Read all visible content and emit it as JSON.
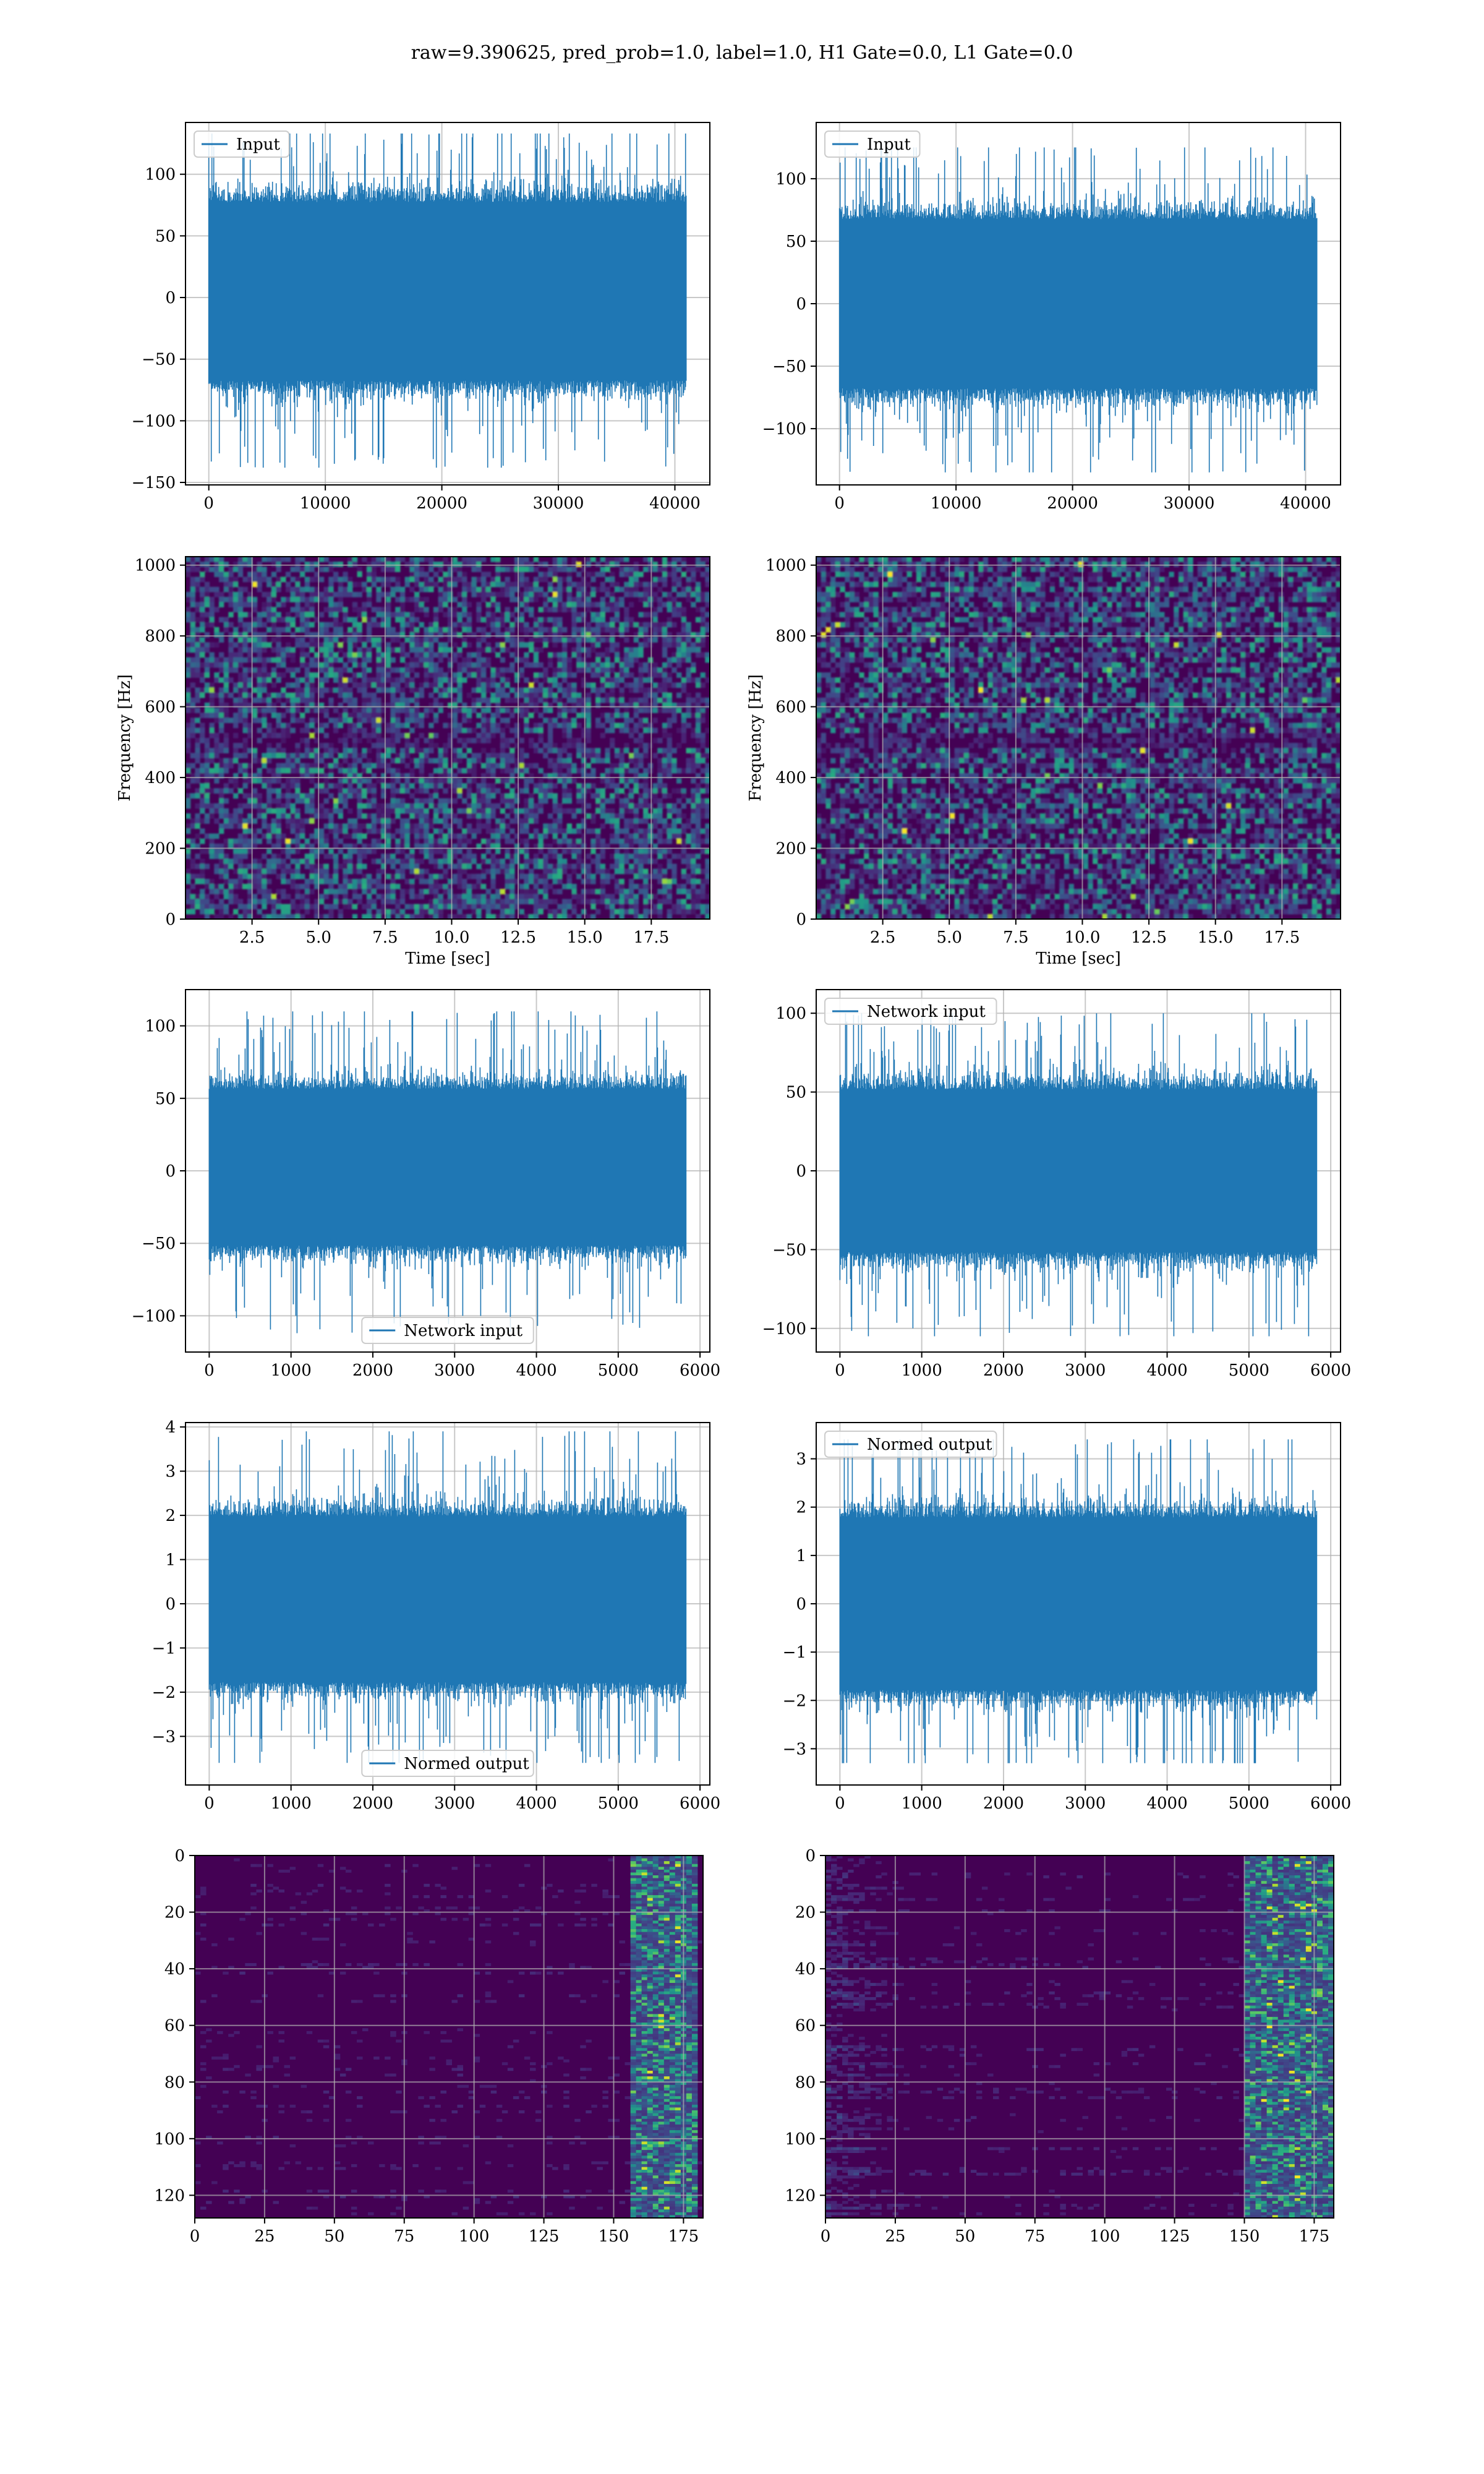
{
  "figure": {
    "title": "raw=9.390625, pred_prob=1.0, label=1.0, H1 Gate=0.0, L1 Gate=0.0"
  },
  "colors": {
    "line": "#1f77b4",
    "grid": "#b0b0b0",
    "viridis_low": "#440154",
    "viridis_mid": "#21918c",
    "viridis_high": "#fde725"
  },
  "chart_data": [
    {
      "type": "line",
      "panel": "row1-left",
      "title": "",
      "xlabel": "",
      "ylabel": "",
      "xlim": [
        -2000,
        43000
      ],
      "ylim": [
        -152,
        142
      ],
      "xticks": [
        0,
        10000,
        20000,
        30000,
        40000
      ],
      "yticks": [
        -150,
        -100,
        -50,
        0,
        50,
        100
      ],
      "grid": true,
      "legend": {
        "placement": "upper-left",
        "entries": [
          "Input"
        ]
      },
      "series": [
        {
          "name": "Input",
          "n_samples": 40960,
          "x_range": [
            0,
            40960
          ],
          "envelope_p95": [
            -72,
            82
          ],
          "extremes": [
            -138,
            133
          ]
        }
      ]
    },
    {
      "type": "line",
      "panel": "row1-right",
      "title": "",
      "xlabel": "",
      "ylabel": "",
      "xlim": [
        -2000,
        43000
      ],
      "ylim": [
        -145,
        145
      ],
      "xticks": [
        0,
        10000,
        20000,
        30000,
        40000
      ],
      "yticks": [
        -100,
        -50,
        0,
        50,
        100
      ],
      "grid": true,
      "legend": {
        "placement": "upper-left",
        "entries": [
          "Input"
        ]
      },
      "series": [
        {
          "name": "Input",
          "n_samples": 40960,
          "x_range": [
            0,
            40960
          ],
          "envelope_p95": [
            -72,
            72
          ],
          "extremes": [
            -135,
            125
          ]
        }
      ]
    },
    {
      "type": "heatmap",
      "panel": "row2-left",
      "title": "",
      "xlabel": "Time [sec]",
      "ylabel": "Frequency [Hz]",
      "xlim": [
        0,
        19.7
      ],
      "ylim": [
        0,
        1024
      ],
      "xticks": [
        2.5,
        5.0,
        7.5,
        10.0,
        12.5,
        15.0,
        17.5
      ],
      "xtick_labels": [
        "2.5",
        "5.0",
        "7.5",
        "10.0",
        "12.5",
        "15.0",
        "17.5"
      ],
      "yticks": [
        0,
        200,
        400,
        600,
        800,
        1000
      ],
      "grid": true,
      "colormap": "viridis",
      "description_value_range": [
        0,
        1
      ]
    },
    {
      "type": "heatmap",
      "panel": "row2-right",
      "title": "",
      "xlabel": "Time [sec]",
      "ylabel": "Frequency [Hz]",
      "xlim": [
        0,
        19.7
      ],
      "ylim": [
        0,
        1024
      ],
      "xticks": [
        2.5,
        5.0,
        7.5,
        10.0,
        12.5,
        15.0,
        17.5
      ],
      "xtick_labels": [
        "2.5",
        "5.0",
        "7.5",
        "10.0",
        "12.5",
        "15.0",
        "17.5"
      ],
      "yticks": [
        0,
        200,
        400,
        600,
        800,
        1000
      ],
      "grid": true,
      "colormap": "viridis",
      "description_value_range": [
        0,
        1
      ]
    },
    {
      "type": "line",
      "panel": "row3-left",
      "title": "",
      "xlabel": "",
      "ylabel": "",
      "xlim": [
        -290,
        6120
      ],
      "ylim": [
        -125,
        125
      ],
      "xticks": [
        0,
        1000,
        2000,
        3000,
        4000,
        5000,
        6000
      ],
      "yticks": [
        -100,
        -50,
        0,
        50,
        100
      ],
      "grid": true,
      "legend": {
        "placement": "lower-center",
        "entries": [
          "Network input"
        ]
      },
      "series": [
        {
          "name": "Network input",
          "n_samples": 5830,
          "x_range": [
            0,
            5830
          ],
          "envelope_p95": [
            -55,
            60
          ],
          "extremes": [
            -112,
            110
          ]
        }
      ]
    },
    {
      "type": "line",
      "panel": "row3-right",
      "title": "",
      "xlabel": "",
      "ylabel": "",
      "xlim": [
        -290,
        6120
      ],
      "ylim": [
        -115,
        115
      ],
      "xticks": [
        0,
        1000,
        2000,
        3000,
        4000,
        5000,
        6000
      ],
      "yticks": [
        -100,
        -50,
        0,
        50,
        100
      ],
      "grid": true,
      "legend": {
        "placement": "upper-left",
        "entries": [
          "Network input"
        ]
      },
      "series": [
        {
          "name": "Network input",
          "n_samples": 5830,
          "x_range": [
            0,
            5830
          ],
          "envelope_p95": [
            -55,
            55
          ],
          "extremes": [
            -105,
            100
          ]
        }
      ]
    },
    {
      "type": "line",
      "panel": "row4-left",
      "title": "",
      "xlabel": "",
      "ylabel": "",
      "xlim": [
        -290,
        6120
      ],
      "ylim": [
        -4.1,
        4.1
      ],
      "xticks": [
        0,
        1000,
        2000,
        3000,
        4000,
        5000,
        6000
      ],
      "yticks": [
        -3,
        -2,
        -1,
        0,
        1,
        2,
        3,
        4
      ],
      "grid": true,
      "legend": {
        "placement": "lower-center",
        "entries": [
          "Normed output"
        ]
      },
      "series": [
        {
          "name": "Normed output",
          "n_samples": 5830,
          "x_range": [
            0,
            5830
          ],
          "envelope_p95": [
            -1.9,
            2.1
          ],
          "extremes": [
            -3.6,
            3.9
          ]
        }
      ]
    },
    {
      "type": "line",
      "panel": "row4-right",
      "title": "",
      "xlabel": "",
      "ylabel": "",
      "xlim": [
        -290,
        6120
      ],
      "ylim": [
        -3.75,
        3.75
      ],
      "xticks": [
        0,
        1000,
        2000,
        3000,
        4000,
        5000,
        6000
      ],
      "yticks": [
        -3,
        -2,
        -1,
        0,
        1,
        2,
        3
      ],
      "grid": true,
      "legend": {
        "placement": "upper-left",
        "entries": [
          "Normed output"
        ]
      },
      "series": [
        {
          "name": "Normed output",
          "n_samples": 5830,
          "x_range": [
            0,
            5830
          ],
          "envelope_p95": [
            -1.9,
            1.9
          ],
          "extremes": [
            -3.3,
            3.4
          ]
        }
      ]
    },
    {
      "type": "heatmap",
      "panel": "row5-left",
      "title": "",
      "xlabel": "",
      "ylabel": "",
      "xlim": [
        0,
        182
      ],
      "ylim": [
        128,
        0
      ],
      "xticks": [
        0,
        25,
        50,
        75,
        100,
        125,
        150,
        175
      ],
      "yticks": [
        0,
        20,
        40,
        60,
        80,
        100,
        120
      ],
      "grid": true,
      "colormap": "viridis",
      "rows": 128,
      "cols": 182,
      "hot_columns": [
        155,
        178
      ]
    },
    {
      "type": "heatmap",
      "panel": "row5-right",
      "title": "",
      "xlabel": "",
      "ylabel": "",
      "xlim": [
        0,
        182
      ],
      "ylim": [
        128,
        0
      ],
      "xticks": [
        0,
        25,
        50,
        75,
        100,
        125,
        150,
        175
      ],
      "yticks": [
        0,
        20,
        40,
        60,
        80,
        100,
        120
      ],
      "grid": true,
      "colormap": "viridis",
      "rows": 128,
      "cols": 182,
      "hot_columns": [
        150,
        180
      ]
    }
  ]
}
